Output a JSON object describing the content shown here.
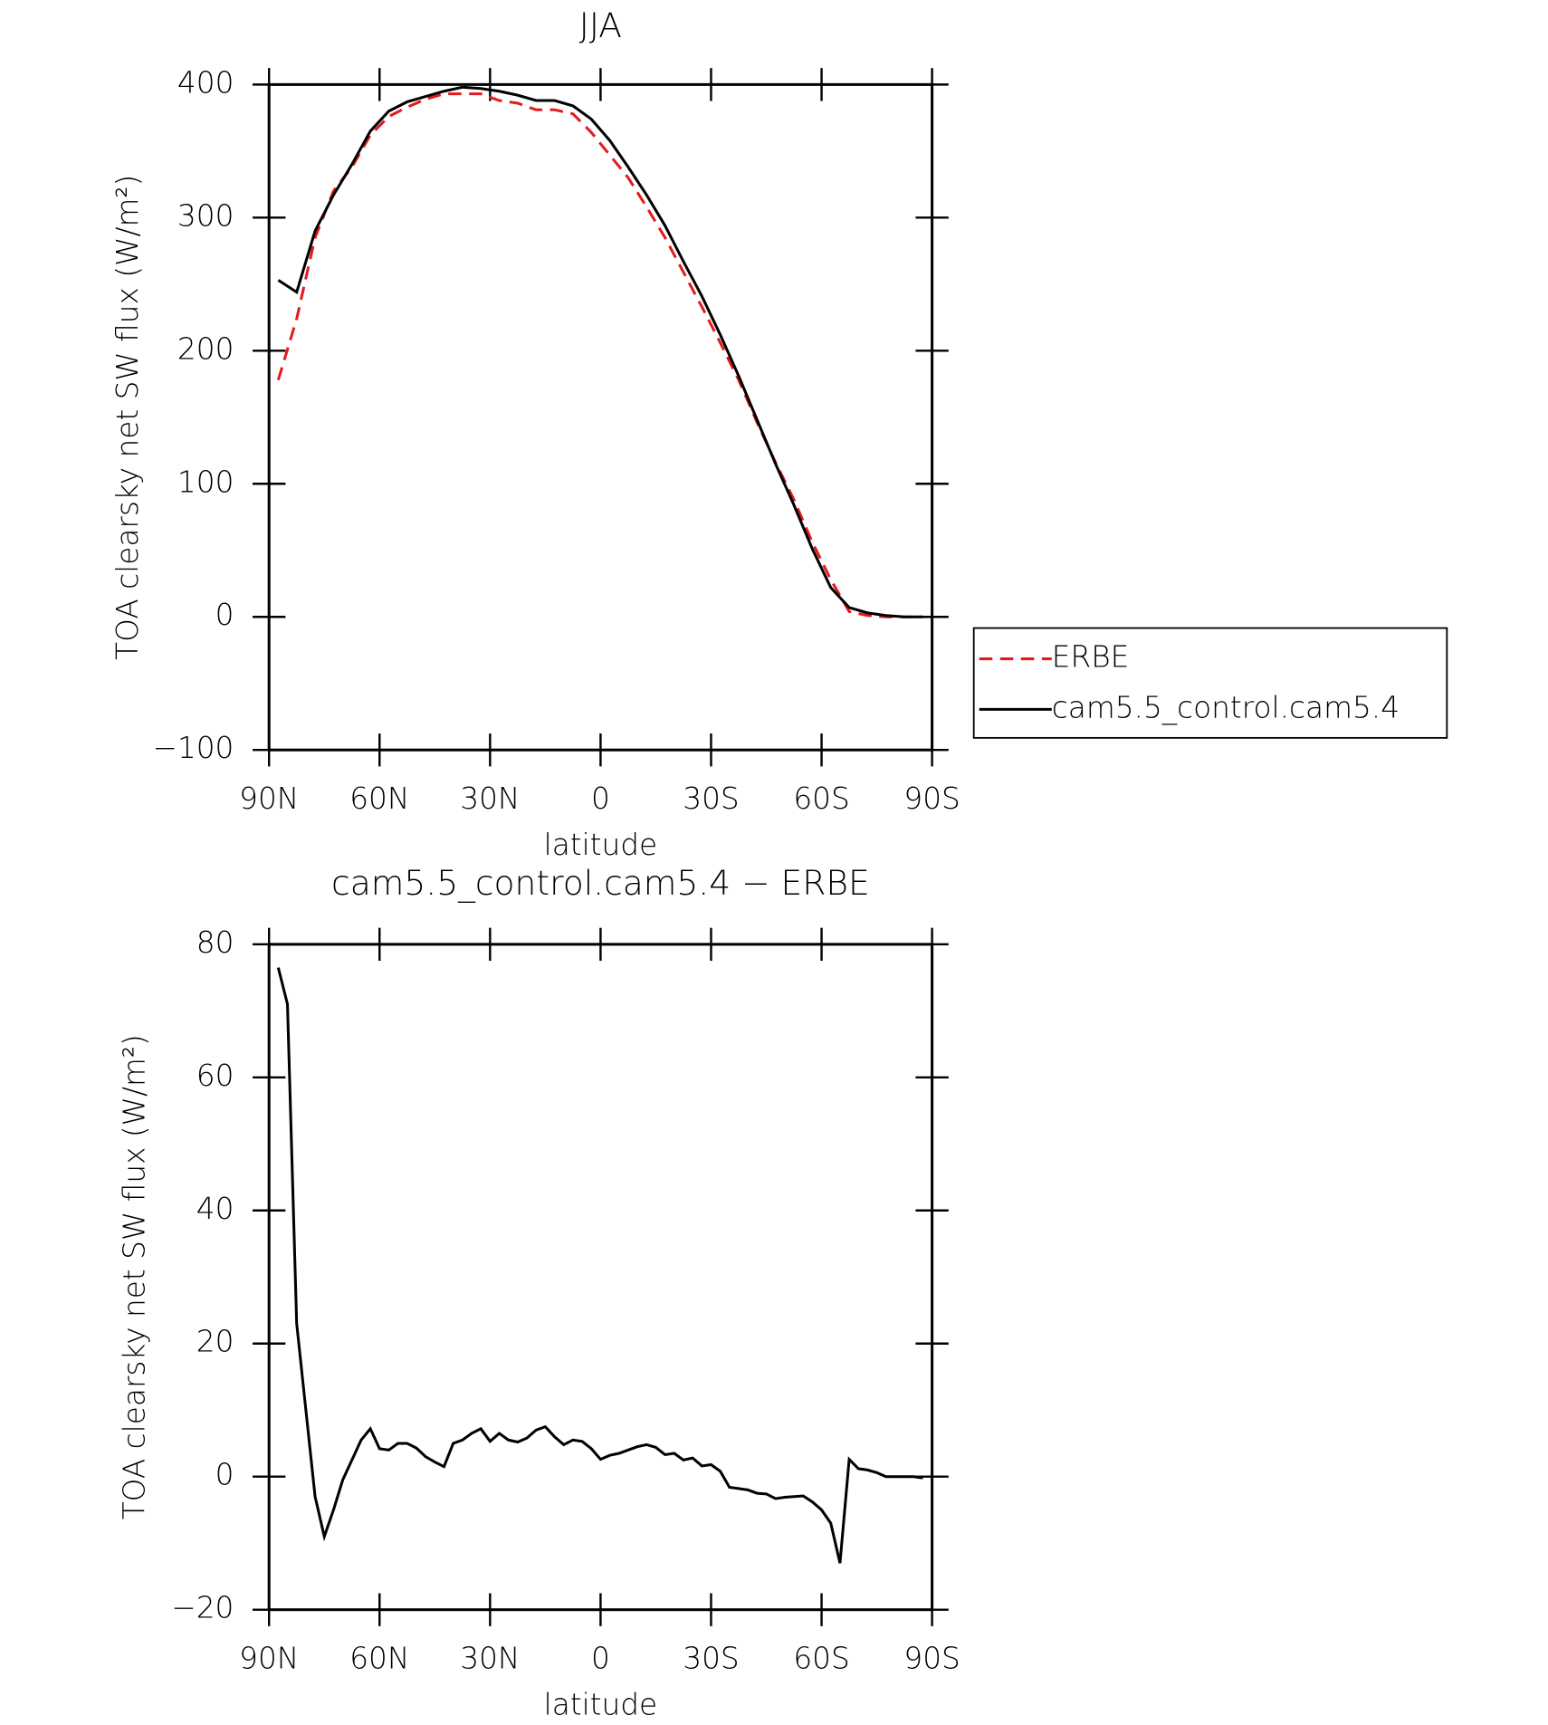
{
  "chart_data": [
    {
      "type": "line",
      "title": "JJA",
      "xlabel": "latitude",
      "ylabel": "TOA clearsky net SW flux (W/m²)",
      "x": [
        87.5,
        82.5,
        77.5,
        72.5,
        67.5,
        62.5,
        57.5,
        52.5,
        47.5,
        42.5,
        37.5,
        32.5,
        27.5,
        22.5,
        17.5,
        12.5,
        7.5,
        2.5,
        -2.5,
        -7.5,
        -12.5,
        -17.5,
        -22.5,
        -27.5,
        -32.5,
        -37.5,
        -42.5,
        -47.5,
        -52.5,
        -57.5,
        -62.5,
        -67.5,
        -72.5,
        -77.5,
        -82.5,
        -87.5
      ],
      "series": [
        {
          "name": "ERBE",
          "color": "#e41a1c",
          "dash": true,
          "values": [
            178,
            224,
            285,
            320,
            338,
            362,
            376,
            383,
            389,
            393,
            393,
            393,
            388,
            386,
            381,
            381,
            378,
            364,
            347,
            330,
            308,
            285,
            259,
            233,
            206,
            178,
            146,
            116,
            88,
            56,
            28,
            4,
            1,
            0,
            0,
            0
          ]
        },
        {
          "name": "cam5.5_control.cam5.4",
          "color": "#000000",
          "dash": false,
          "values": [
            253,
            244,
            290,
            317,
            340,
            365,
            380,
            387,
            391,
            395,
            398,
            397,
            395,
            392,
            388,
            388,
            384,
            374,
            358,
            338,
            317,
            294,
            267,
            241,
            212,
            181,
            148,
            115,
            84,
            51,
            22,
            7,
            3,
            1,
            0,
            0
          ]
        }
      ],
      "xlim": [
        90,
        -90
      ],
      "xticks": [
        {
          "value": 90,
          "label": "90N"
        },
        {
          "value": 60,
          "label": "60N"
        },
        {
          "value": 30,
          "label": "30N"
        },
        0,
        {
          "value": -30,
          "label": "30S"
        },
        {
          "value": -60,
          "label": "60S"
        },
        {
          "value": -90,
          "label": "90S"
        }
      ],
      "ylim": [
        -100,
        400
      ],
      "yticks": [
        {
          "value": -100,
          "label": "−100"
        },
        0,
        100,
        200,
        300,
        400
      ],
      "legend": "right"
    },
    {
      "type": "line",
      "title": "cam5.5_control.cam5.4 − ERBE",
      "xlabel": "latitude",
      "ylabel": "TOA clearsky net SW flux (W/m²)",
      "x": [
        87.5,
        85,
        82.5,
        80,
        77.5,
        75,
        72.5,
        70,
        67.5,
        65,
        62.5,
        60,
        57.5,
        55,
        52.5,
        50,
        47.5,
        45,
        42.5,
        40,
        37.5,
        35,
        32.5,
        30,
        27.5,
        25,
        22.5,
        20,
        17.5,
        15,
        12.5,
        10,
        7.5,
        5,
        2.5,
        0,
        -2.5,
        -5,
        -7.5,
        -10,
        -12.5,
        -15,
        -17.5,
        -20,
        -22.5,
        -25,
        -27.5,
        -30,
        -32.5,
        -35,
        -37.5,
        -40,
        -42.5,
        -45,
        -47.5,
        -50,
        -52.5,
        -55,
        -57.5,
        -60,
        -62.5,
        -65,
        -67.5,
        -70,
        -72.5,
        -75,
        -77.5,
        -80,
        -82.5,
        -85,
        -87.5
      ],
      "series": [
        {
          "color": "#000000",
          "dash": false,
          "values": [
            76.5,
            71,
            23,
            10,
            -3,
            -9,
            -5,
            -0.5,
            2.5,
            5.5,
            7.2,
            4.2,
            4,
            5,
            5,
            4.3,
            3,
            2.2,
            1.5,
            5,
            5.5,
            6.5,
            7.2,
            5.3,
            6.5,
            5.5,
            5.2,
            5.8,
            7,
            7.5,
            6,
            4.8,
            5.5,
            5.3,
            4.2,
            2.6,
            3.2,
            3.5,
            4,
            4.5,
            4.8,
            4.4,
            3.3,
            3.5,
            2.5,
            2.8,
            1.6,
            1.8,
            0.8,
            -1.6,
            -1.8,
            -2,
            -2.5,
            -2.6,
            -3.3,
            -3.1,
            -3,
            -2.9,
            -3.8,
            -5,
            -7,
            -13,
            2.6,
            1.2,
            1,
            0.6,
            0,
            0,
            0,
            0,
            -0.2
          ]
        }
      ],
      "xlim": [
        90,
        -90
      ],
      "xticks": [
        {
          "value": 90,
          "label": "90N"
        },
        {
          "value": 60,
          "label": "60N"
        },
        {
          "value": 30,
          "label": "30N"
        },
        0,
        {
          "value": -30,
          "label": "30S"
        },
        {
          "value": -60,
          "label": "60S"
        },
        {
          "value": -90,
          "label": "90S"
        }
      ],
      "ylim": [
        -20,
        80
      ],
      "yticks": [
        {
          "value": -20,
          "label": "−20"
        },
        0,
        20,
        40,
        60,
        80
      ]
    }
  ]
}
